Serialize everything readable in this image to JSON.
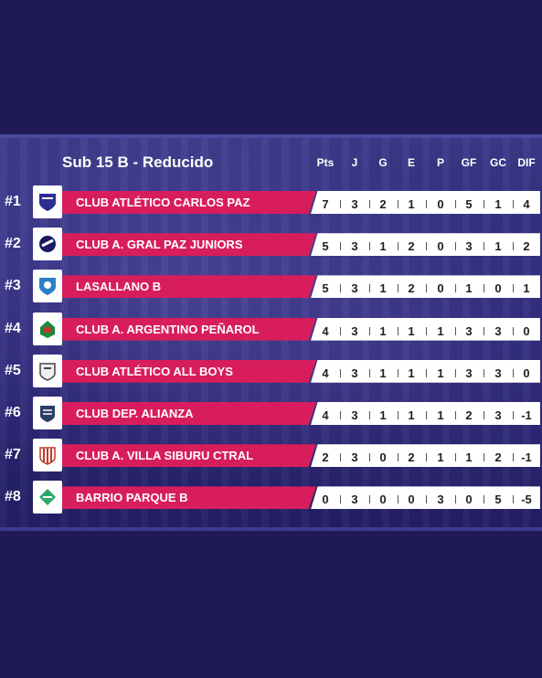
{
  "title": "Sub 15 B - Reducido",
  "columns": [
    "Pts",
    "J",
    "G",
    "E",
    "P",
    "GF",
    "GC",
    "DIF"
  ],
  "colors": {
    "background": "#1f1a55",
    "bar": "#d81d5d",
    "stats_bg": "#ffffff"
  },
  "rows": [
    {
      "pos": "#1",
      "team": "CLUB ATLÉTICO CARLOS PAZ",
      "logo": "carlos-paz-shield-icon",
      "stats": [
        "7",
        "3",
        "2",
        "1",
        "0",
        "5",
        "1",
        "4"
      ]
    },
    {
      "pos": "#2",
      "team": "CLUB A. GRAL PAZ JUNIORS",
      "logo": "gral-paz-shield-icon",
      "stats": [
        "5",
        "3",
        "1",
        "2",
        "0",
        "3",
        "1",
        "2"
      ]
    },
    {
      "pos": "#3",
      "team": "LASALLANO B",
      "logo": "lasallano-shield-icon",
      "stats": [
        "5",
        "3",
        "1",
        "2",
        "0",
        "1",
        "0",
        "1"
      ]
    },
    {
      "pos": "#4",
      "team": "CLUB A. ARGENTINO PEÑAROL",
      "logo": "penarol-shield-icon",
      "stats": [
        "4",
        "3",
        "1",
        "1",
        "1",
        "3",
        "3",
        "0"
      ]
    },
    {
      "pos": "#5",
      "team": "CLUB ATLÉTICO ALL BOYS",
      "logo": "all-boys-shield-icon",
      "stats": [
        "4",
        "3",
        "1",
        "1",
        "1",
        "3",
        "3",
        "0"
      ]
    },
    {
      "pos": "#6",
      "team": "CLUB DEP. ALIANZA",
      "logo": "alianza-shield-icon",
      "stats": [
        "4",
        "3",
        "1",
        "1",
        "1",
        "2",
        "3",
        "-1"
      ]
    },
    {
      "pos": "#7",
      "team": "CLUB A. VILLA SIBURU CTRAL",
      "logo": "villa-siburu-shield-icon",
      "stats": [
        "2",
        "3",
        "0",
        "2",
        "1",
        "1",
        "2",
        "-1"
      ]
    },
    {
      "pos": "#8",
      "team": "BARRIO PARQUE B",
      "logo": "barrio-parque-shield-icon",
      "stats": [
        "0",
        "3",
        "0",
        "0",
        "3",
        "0",
        "5",
        "-5"
      ]
    }
  ]
}
